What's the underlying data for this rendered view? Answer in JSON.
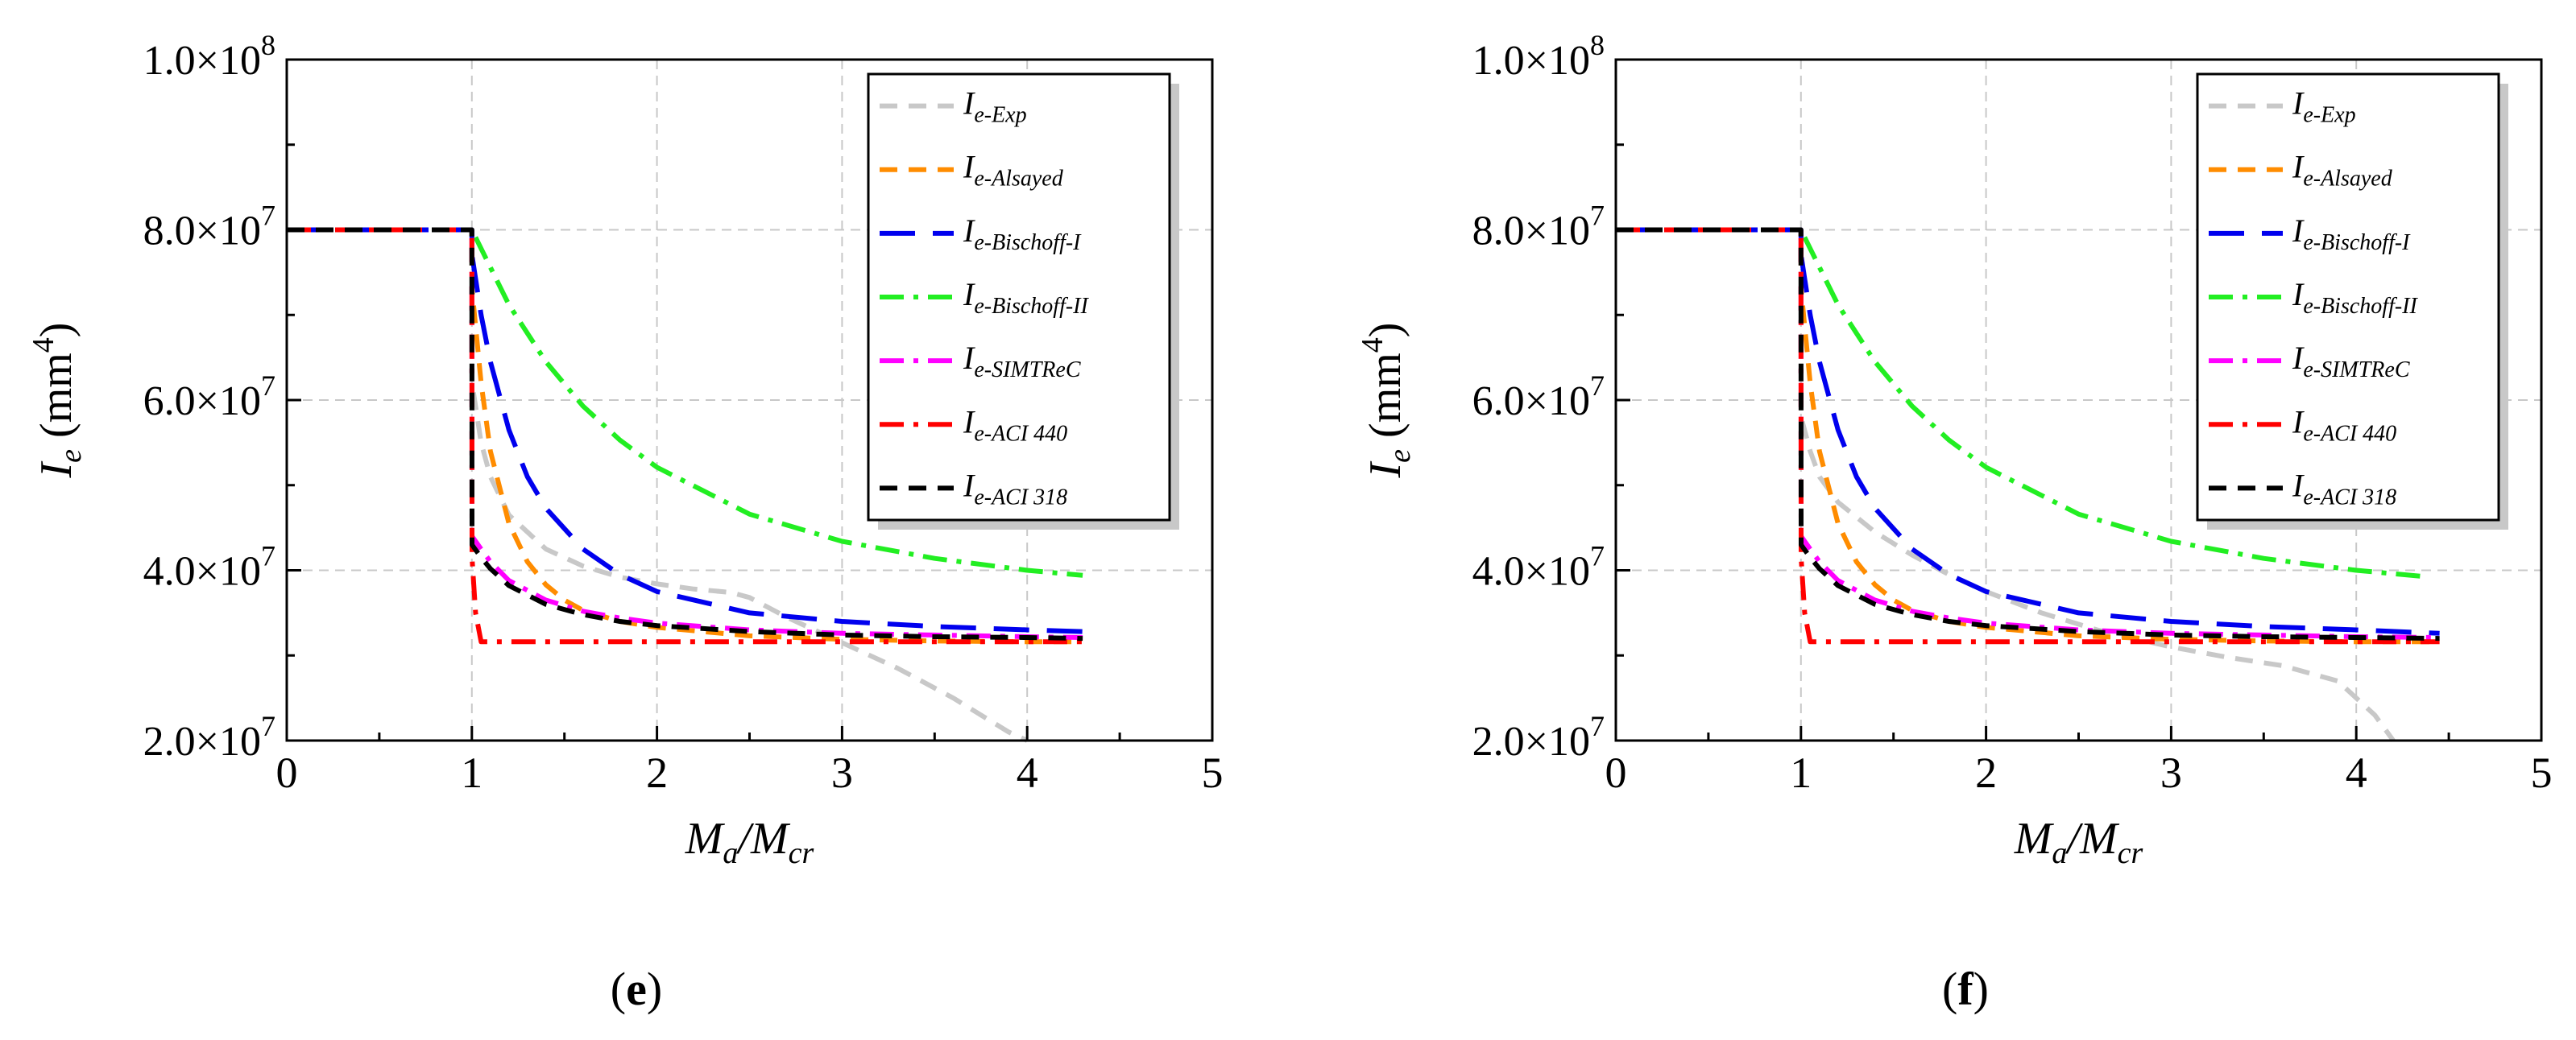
{
  "chart_data": [
    {
      "panel_label": "(e)",
      "panel_letter": "e",
      "type": "line",
      "title": "",
      "xlabel": "M_a/M_cr",
      "ylabel": "I_e (mm^4)",
      "xlim": [
        0,
        5
      ],
      "ylim": [
        20000000,
        100000000
      ],
      "xticks": [
        0,
        1,
        2,
        3,
        4,
        5
      ],
      "xtick_labels": [
        "0",
        "1",
        "2",
        "3",
        "4",
        "5"
      ],
      "yticks": [
        20000000,
        40000000,
        60000000,
        80000000,
        100000000
      ],
      "ytick_labels": [
        {
          "mantissa": "2.0×10",
          "exp": "7"
        },
        {
          "mantissa": "4.0×10",
          "exp": "7"
        },
        {
          "mantissa": "6.0×10",
          "exp": "7"
        },
        {
          "mantissa": "8.0×10",
          "exp": "7"
        },
        {
          "mantissa": "1.0×10",
          "exp": "8"
        }
      ],
      "grid": true,
      "legend_position": "top-right",
      "series": [
        {
          "key": "exp",
          "name": "I",
          "sub": "e-Exp",
          "color": "#c8c8c8",
          "dash": "short",
          "x": [
            0,
            1,
            1.001,
            1.05,
            1.1,
            1.2,
            1.4,
            1.6,
            1.8,
            2.0,
            2.2,
            2.4,
            2.5,
            2.7,
            3.0,
            3.3,
            3.6,
            3.9,
            4.0
          ],
          "y": [
            80000000,
            80000000,
            62000000,
            55000000,
            51000000,
            46500000,
            42500000,
            40500000,
            39200000,
            38400000,
            37800000,
            37400000,
            36800000,
            34500000,
            31500000,
            28500000,
            25000000,
            21000000,
            20000000
          ]
        },
        {
          "key": "alsayed",
          "name": "I",
          "sub": "e-Alsayed",
          "color": "#ff8c00",
          "dash": "short",
          "x": [
            0,
            1,
            1.001,
            1.05,
            1.1,
            1.2,
            1.3,
            1.4,
            1.5,
            1.6,
            1.8,
            2.0,
            2.5,
            3.0,
            3.5,
            4.0,
            4.3
          ],
          "y": [
            80000000,
            80000000,
            73000000,
            62000000,
            54000000,
            45500000,
            41000000,
            38300000,
            36500000,
            35300000,
            34000000,
            33300000,
            32300000,
            31900000,
            31700000,
            31600000,
            31600000
          ]
        },
        {
          "key": "bischoff1",
          "name": "I",
          "sub": "e-Bischoff-I",
          "color": "#0000ee",
          "dash": "long",
          "x": [
            0,
            1,
            1.001,
            1.05,
            1.1,
            1.2,
            1.3,
            1.4,
            1.6,
            1.8,
            2.0,
            2.5,
            3.0,
            3.5,
            4.0,
            4.3
          ],
          "y": [
            80000000,
            80000000,
            77000000,
            70000000,
            64500000,
            56500000,
            51000000,
            47300000,
            42500000,
            39500000,
            37500000,
            35000000,
            34000000,
            33400000,
            33000000,
            32800000
          ]
        },
        {
          "key": "bischoff2",
          "name": "I",
          "sub": "e-Bischoff-II",
          "color": "#22ee22",
          "dash": "dashdot",
          "x": [
            0,
            1,
            1.05,
            1.2,
            1.4,
            1.6,
            1.8,
            2.0,
            2.5,
            3.0,
            3.5,
            4.0,
            4.3
          ],
          "y": [
            80000000,
            80000000,
            77800000,
            71200000,
            64500000,
            59300000,
            55300000,
            52100000,
            46600000,
            43400000,
            41400000,
            40000000,
            39400000
          ]
        },
        {
          "key": "simtrec",
          "name": "I",
          "sub": "e-SIMTReC",
          "color": "#ff00ff",
          "dash": "dashdot",
          "x": [
            0,
            1,
            1.001,
            1.05,
            1.1,
            1.2,
            1.4,
            1.6,
            1.8,
            2.0,
            2.5,
            3.0,
            3.5,
            4.0,
            4.3
          ],
          "y": [
            80000000,
            80000000,
            44000000,
            42500000,
            41000000,
            38800000,
            36500000,
            35200000,
            34400000,
            33800000,
            33000000,
            32600000,
            32400000,
            32200000,
            32100000
          ]
        },
        {
          "key": "aci440",
          "name": "I",
          "sub": "e-ACI 440",
          "color": "#ff0000",
          "dash": "dashdot",
          "x": [
            0,
            1,
            1.001,
            1.02,
            1.05,
            1.5,
            2.0,
            3.0,
            4.0,
            4.3
          ],
          "y": [
            80000000,
            80000000,
            41500000,
            35000000,
            31600000,
            31600000,
            31600000,
            31600000,
            31600000,
            31600000
          ]
        },
        {
          "key": "aci318",
          "name": "I",
          "sub": "e-ACI 318",
          "color": "#000000",
          "dash": "short",
          "x": [
            0,
            1,
            1.001,
            1.05,
            1.1,
            1.2,
            1.4,
            1.6,
            1.8,
            2.0,
            2.5,
            3.0,
            3.5,
            4.0,
            4.3
          ],
          "y": [
            80000000,
            80000000,
            43000000,
            41500000,
            40200000,
            38200000,
            36000000,
            34800000,
            34000000,
            33500000,
            32800000,
            32400000,
            32200000,
            32100000,
            32000000
          ]
        }
      ]
    },
    {
      "panel_label": "(f)",
      "panel_letter": "f",
      "type": "line",
      "title": "",
      "xlabel": "M_a/M_cr",
      "ylabel": "I_e (mm^4)",
      "xlim": [
        0,
        5
      ],
      "ylim": [
        20000000,
        100000000
      ],
      "xticks": [
        0,
        1,
        2,
        3,
        4,
        5
      ],
      "xtick_labels": [
        "0",
        "1",
        "2",
        "3",
        "4",
        "5"
      ],
      "yticks": [
        20000000,
        40000000,
        60000000,
        80000000,
        100000000
      ],
      "ytick_labels": [
        {
          "mantissa": "2.0×10",
          "exp": "7"
        },
        {
          "mantissa": "4.0×10",
          "exp": "7"
        },
        {
          "mantissa": "6.0×10",
          "exp": "7"
        },
        {
          "mantissa": "8.0×10",
          "exp": "7"
        },
        {
          "mantissa": "1.0×10",
          "exp": "8"
        }
      ],
      "grid": true,
      "legend_position": "top-right",
      "series": [
        {
          "key": "exp",
          "name": "I",
          "sub": "e-Exp",
          "color": "#c8c8c8",
          "dash": "short",
          "x": [
            0,
            1,
            1.001,
            1.05,
            1.1,
            1.2,
            1.4,
            1.6,
            1.8,
            2.0,
            2.3,
            2.6,
            3.0,
            3.3,
            3.6,
            3.9,
            4.1,
            4.2
          ],
          "y": [
            80000000,
            80000000,
            58000000,
            54000000,
            51000000,
            48000000,
            44500000,
            41800000,
            39500000,
            37500000,
            35000000,
            33000000,
            31000000,
            29800000,
            28800000,
            27000000,
            23000000,
            20000000
          ]
        },
        {
          "key": "alsayed",
          "name": "I",
          "sub": "e-Alsayed",
          "color": "#ff8c00",
          "dash": "short",
          "x": [
            0,
            1,
            1.001,
            1.05,
            1.1,
            1.2,
            1.3,
            1.4,
            1.5,
            1.6,
            1.8,
            2.0,
            2.5,
            3.0,
            3.5,
            4.0,
            4.45
          ],
          "y": [
            80000000,
            80000000,
            73000000,
            62000000,
            54000000,
            45500000,
            41000000,
            38300000,
            36500000,
            35300000,
            34000000,
            33300000,
            32300000,
            31900000,
            31700000,
            31600000,
            31600000
          ]
        },
        {
          "key": "bischoff1",
          "name": "I",
          "sub": "e-Bischoff-I",
          "color": "#0000ee",
          "dash": "long",
          "x": [
            0,
            1,
            1.001,
            1.05,
            1.1,
            1.2,
            1.3,
            1.4,
            1.6,
            1.8,
            2.0,
            2.5,
            3.0,
            3.5,
            4.0,
            4.45
          ],
          "y": [
            80000000,
            80000000,
            77000000,
            70000000,
            64500000,
            56500000,
            51000000,
            47300000,
            42500000,
            39500000,
            37500000,
            35000000,
            34000000,
            33400000,
            33000000,
            32600000
          ]
        },
        {
          "key": "bischoff2",
          "name": "I",
          "sub": "e-Bischoff-II",
          "color": "#22ee22",
          "dash": "dashdot",
          "x": [
            0,
            1,
            1.05,
            1.2,
            1.4,
            1.6,
            1.8,
            2.0,
            2.5,
            3.0,
            3.5,
            4.0,
            4.35
          ],
          "y": [
            80000000,
            80000000,
            77800000,
            71200000,
            64500000,
            59300000,
            55300000,
            52100000,
            46600000,
            43400000,
            41400000,
            40000000,
            39300000
          ]
        },
        {
          "key": "simtrec",
          "name": "I",
          "sub": "e-SIMTReC",
          "color": "#ff00ff",
          "dash": "dashdot",
          "x": [
            0,
            1,
            1.001,
            1.05,
            1.1,
            1.2,
            1.4,
            1.6,
            1.8,
            2.0,
            2.5,
            3.0,
            3.5,
            4.0,
            4.45
          ],
          "y": [
            80000000,
            80000000,
            44000000,
            42500000,
            41000000,
            38800000,
            36500000,
            35200000,
            34400000,
            33800000,
            33000000,
            32600000,
            32400000,
            32200000,
            32100000
          ]
        },
        {
          "key": "aci440",
          "name": "I",
          "sub": "e-ACI 440",
          "color": "#ff0000",
          "dash": "dashdot",
          "x": [
            0,
            1,
            1.001,
            1.02,
            1.05,
            1.5,
            2.0,
            3.0,
            4.0,
            4.45
          ],
          "y": [
            80000000,
            80000000,
            41500000,
            35000000,
            31600000,
            31600000,
            31600000,
            31600000,
            31600000,
            31600000
          ]
        },
        {
          "key": "aci318",
          "name": "I",
          "sub": "e-ACI 318",
          "color": "#000000",
          "dash": "short",
          "x": [
            0,
            1,
            1.001,
            1.05,
            1.1,
            1.2,
            1.4,
            1.6,
            1.8,
            2.0,
            2.5,
            3.0,
            3.5,
            4.0,
            4.45
          ],
          "y": [
            80000000,
            80000000,
            43000000,
            41500000,
            40200000,
            38200000,
            36000000,
            34800000,
            34000000,
            33500000,
            32800000,
            32400000,
            32200000,
            32100000,
            32000000
          ]
        }
      ]
    }
  ]
}
